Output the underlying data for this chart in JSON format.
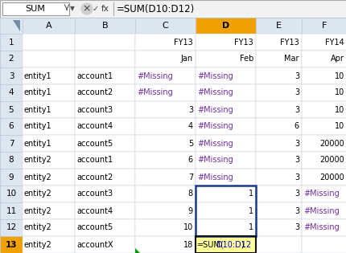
{
  "formula_bar_name": "SUM",
  "formula_bar_formula": "=SUM(D10:D12)",
  "col_headers": [
    "A",
    "B",
    "C",
    "D",
    "E",
    "F"
  ],
  "header_bg": "#dce6f1",
  "active_col_bg": "#f0a000",
  "grid_color": "#c0c8d8",
  "missing_color": "#7030a0",
  "cells": {
    "1": {
      "C": "FY13",
      "D": "FY13",
      "E": "FY13",
      "F": "FY14"
    },
    "2": {
      "C": "Jan",
      "D": "Feb",
      "E": "Mar",
      "F": "Apr"
    },
    "3": {
      "A": "entity1",
      "B": "account1",
      "C": "#Missing",
      "D": "#Missing",
      "E": "3",
      "F": "10"
    },
    "4": {
      "A": "entity1",
      "B": "account2",
      "C": "#Missing",
      "D": "#Missing",
      "E": "3",
      "F": "10"
    },
    "5": {
      "A": "entity1",
      "B": "account3",
      "C": "3",
      "D": "#Missing",
      "E": "3",
      "F": "10"
    },
    "6": {
      "A": "entity1",
      "B": "account4",
      "C": "4",
      "D": "#Missing",
      "E": "6",
      "F": "10"
    },
    "7": {
      "A": "entity1",
      "B": "account5",
      "C": "5",
      "D": "#Missing",
      "E": "3",
      "F": "20000"
    },
    "8": {
      "A": "entity2",
      "B": "account1",
      "C": "6",
      "D": "#Missing",
      "E": "3",
      "F": "20000"
    },
    "9": {
      "A": "entity2",
      "B": "account2",
      "C": "7",
      "D": "#Missing",
      "E": "3",
      "F": "20000"
    },
    "10": {
      "A": "entity2",
      "B": "account3",
      "C": "8",
      "D": "1",
      "E": "3",
      "F": "#Missing"
    },
    "11": {
      "A": "entity2",
      "B": "account4",
      "C": "9",
      "D": "1",
      "E": "3",
      "F": "#Missing"
    },
    "12": {
      "A": "entity2",
      "B": "account5",
      "C": "10",
      "D": "1",
      "E": "3",
      "F": "#Missing"
    },
    "13": {
      "A": "entity2",
      "B": "accountX",
      "C": "18",
      "D": "=SUM(D10:D12)",
      "E": "",
      "F": ""
    }
  },
  "selected_cell": [
    13,
    "D"
  ],
  "range_highlight": {
    "rows": [
      10,
      11,
      12
    ],
    "col": "D"
  }
}
